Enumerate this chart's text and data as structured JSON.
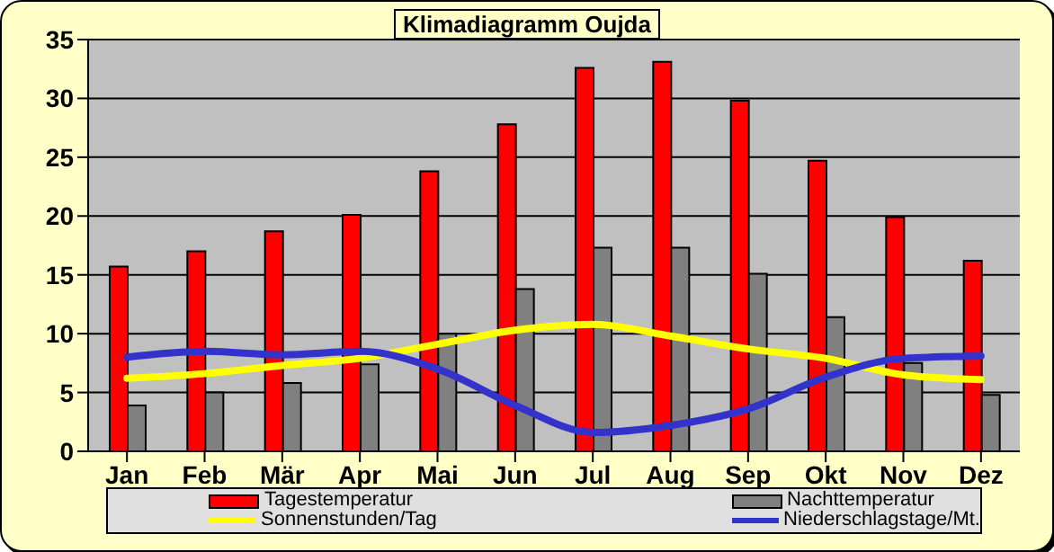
{
  "chart_data": {
    "type": "bar",
    "title": "Klimadiagramm Oujda",
    "categories": [
      "Jan",
      "Feb",
      "Mär",
      "Apr",
      "Mai",
      "Jun",
      "Jul",
      "Aug",
      "Sep",
      "Okt",
      "Nov",
      "Dez"
    ],
    "series": [
      {
        "name": "Tagestemperatur",
        "color": "#ff0000",
        "values": [
          15.7,
          17.0,
          18.7,
          20.1,
          23.8,
          27.8,
          32.6,
          33.1,
          29.8,
          24.7,
          19.9,
          16.2
        ]
      },
      {
        "name": "Nachttemperatur",
        "color": "#808080",
        "values": [
          3.9,
          5.0,
          5.8,
          7.4,
          10.0,
          13.8,
          17.3,
          17.3,
          15.1,
          11.4,
          7.5,
          4.8
        ]
      },
      {
        "name": "Sonnenstunden/Tag",
        "type": "line",
        "color": "#ffff00",
        "values": [
          6.2,
          6.6,
          7.3,
          7.9,
          9.1,
          10.3,
          10.8,
          9.8,
          8.7,
          7.9,
          6.5,
          6.1
        ]
      },
      {
        "name": "Niederschlagstage/Mt.",
        "type": "line",
        "color": "#3333cc",
        "values": [
          8.0,
          8.5,
          8.2,
          8.5,
          7.0,
          3.9,
          1.6,
          2.2,
          3.6,
          6.3,
          7.9,
          8.1
        ]
      }
    ],
    "ylim": [
      0,
      35
    ],
    "yticks": [
      0,
      5,
      10,
      15,
      20,
      25,
      30,
      35
    ],
    "grid": "y",
    "legend": "bottom",
    "marker": "none"
  }
}
